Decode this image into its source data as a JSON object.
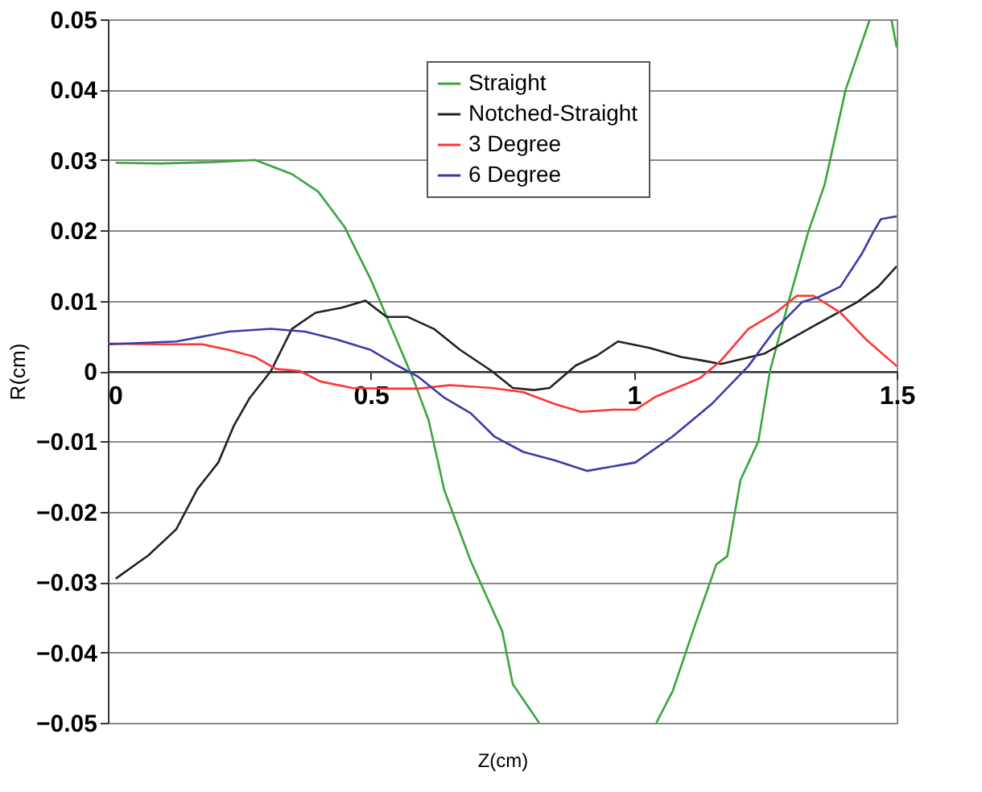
{
  "chart_data": {
    "type": "line",
    "xlabel": "Z(cm)",
    "ylabel": "R(cm)",
    "xlim": [
      0,
      1.5
    ],
    "xticks": [
      0,
      0.5,
      1,
      1.5
    ],
    "ylim": [
      -0.05,
      0.05
    ],
    "yticks": [
      -0.05,
      -0.04,
      -0.03,
      -0.02,
      -0.01,
      0,
      0.01,
      0.02,
      0.03,
      0.04,
      0.05
    ],
    "grid": "y",
    "legend": "top",
    "marker": "none",
    "line_style": "solid",
    "series": [
      {
        "name": "Straight",
        "color": "#3aa53a",
        "x": [
          0.015,
          0.1,
          0.2,
          0.28,
          0.35,
          0.4,
          0.45,
          0.5,
          0.54,
          0.58,
          0.61,
          0.64,
          0.69,
          0.75,
          0.77,
          0.82,
          0.9,
          1.043,
          1.074,
          1.117,
          1.157,
          1.178,
          1.203,
          1.237,
          1.259,
          1.295,
          1.332,
          1.363,
          1.403,
          1.449,
          1.47,
          1.49,
          1.5
        ],
        "values": [
          0.0296,
          0.0295,
          0.0297,
          0.03,
          0.028,
          0.0255,
          0.0205,
          0.013,
          0.006,
          -0.001,
          -0.007,
          -0.017,
          -0.027,
          -0.037,
          -0.0445,
          -0.05,
          null,
          -0.05,
          -0.0455,
          -0.036,
          -0.0275,
          -0.0263,
          -0.0155,
          -0.01,
          0,
          0.01,
          0.0198,
          0.0265,
          0.04,
          0.05,
          null,
          0.05,
          0.046
        ]
      },
      {
        "name": "Notched-Straight",
        "color": "#222222",
        "x": [
          0.015,
          0.077,
          0.13,
          0.17,
          0.21,
          0.24,
          0.27,
          0.31,
          0.35,
          0.395,
          0.445,
          0.49,
          0.53,
          0.57,
          0.62,
          0.67,
          0.73,
          0.77,
          0.81,
          0.84,
          0.89,
          0.93,
          0.97,
          1.03,
          1.09,
          1.13,
          1.166,
          1.249,
          1.342,
          1.425,
          1.465,
          1.5
        ],
        "values": [
          -0.0295,
          -0.0262,
          -0.0225,
          -0.0168,
          -0.013,
          -0.0077,
          -0.0038,
          0,
          0.006,
          0.0083,
          0.009,
          0.01,
          0.0077,
          0.0077,
          0.006,
          0.003,
          0,
          -0.0024,
          -0.0027,
          -0.0024,
          0.0008,
          0.0022,
          0.0042,
          0.0033,
          0.002,
          0.0015,
          0.001,
          0.0025,
          0.0064,
          0.0098,
          0.012,
          0.0149
        ]
      },
      {
        "name": "3 Degree",
        "color": "#ff3333",
        "x": [
          0,
          0.1,
          0.18,
          0.23,
          0.28,
          0.32,
          0.365,
          0.405,
          0.465,
          0.53,
          0.59,
          0.65,
          0.73,
          0.79,
          0.85,
          0.9,
          0.96,
          1.003,
          1.043,
          1.126,
          1.166,
          1.218,
          1.27,
          1.31,
          1.342,
          1.393,
          1.443,
          1.5
        ],
        "values": [
          0.0039,
          0.0038,
          0.0038,
          0.003,
          0.002,
          0.0003,
          0,
          -0.0015,
          -0.0024,
          -0.0025,
          -0.0025,
          -0.002,
          -0.0024,
          -0.003,
          -0.0047,
          -0.0058,
          -0.0055,
          -0.0055,
          -0.0036,
          -0.001,
          0.0015,
          0.006,
          0.0083,
          0.0107,
          0.0107,
          0.0083,
          0.0044,
          0.0007
        ]
      },
      {
        "name": "6 Degree",
        "color": "#3a3aaa",
        "x": [
          0,
          0.13,
          0.23,
          0.31,
          0.375,
          0.435,
          0.5,
          0.55,
          0.59,
          0.64,
          0.69,
          0.735,
          0.79,
          0.85,
          0.911,
          1.003,
          1.074,
          1.148,
          1.218,
          1.27,
          1.32,
          1.351,
          1.393,
          1.434,
          1.455,
          1.47,
          1.5
        ],
        "values": [
          0.0038,
          0.0042,
          0.0056,
          0.006,
          0.0056,
          0.0045,
          0.003,
          0.0008,
          -0.0008,
          -0.0038,
          -0.006,
          -0.0093,
          -0.0115,
          -0.0127,
          -0.0142,
          -0.013,
          -0.0093,
          -0.0047,
          0.0007,
          0.006,
          0.0098,
          0.0105,
          0.012,
          0.0167,
          0.0197,
          0.0216,
          0.022
        ]
      }
    ]
  }
}
